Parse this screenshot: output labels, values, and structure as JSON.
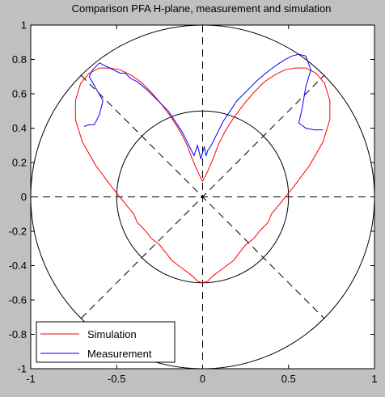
{
  "chart_data": {
    "type": "line",
    "title": "Comparison PFA H-plane, measurement and simulation",
    "xlabel": "",
    "ylabel": "",
    "xlim": [
      -1,
      1
    ],
    "ylim": [
      -1,
      1
    ],
    "xticks": [
      "-1",
      "-0.5",
      "0",
      "0.5",
      "1"
    ],
    "yticks": [
      "1",
      "0.8",
      "0.6",
      "0.4",
      "0.2",
      "0",
      "-0.2",
      "-0.4",
      "-0.6",
      "-0.8",
      "-1"
    ],
    "xtick_values": [
      -1,
      -0.5,
      0,
      0.5,
      1
    ],
    "ytick_values": [
      1,
      0.8,
      0.6,
      0.4,
      0.2,
      0,
      -0.2,
      -0.4,
      -0.6,
      -0.8,
      -1
    ],
    "polar_reference_circles": [
      0.5,
      1.0
    ],
    "legend": {
      "placement": "bottom-left"
    },
    "series": [
      {
        "name": "Simulation",
        "color": "#ff0000",
        "x": [
          0,
          -0.03,
          -0.06,
          -0.09,
          -0.13,
          -0.18,
          -0.24,
          -0.3,
          -0.36,
          -0.42,
          -0.48,
          -0.54,
          -0.6,
          -0.66,
          -0.71,
          -0.74,
          -0.74,
          -0.7,
          -0.62,
          -0.53,
          -0.45,
          -0.4,
          -0.38,
          -0.33,
          -0.3,
          -0.25,
          -0.21,
          -0.18,
          -0.14,
          -0.1,
          -0.06,
          -0.03,
          0,
          0.03,
          0.06,
          0.1,
          0.14,
          0.18,
          0.21,
          0.25,
          0.3,
          0.33,
          0.38,
          0.4,
          0.45,
          0.53,
          0.62,
          0.7,
          0.74,
          0.74,
          0.71,
          0.66,
          0.6,
          0.54,
          0.48,
          0.42,
          0.36,
          0.3,
          0.24,
          0.18,
          0.13,
          0.09,
          0.06,
          0.03,
          0
        ],
        "y": [
          0.09,
          0.15,
          0.22,
          0.3,
          0.38,
          0.46,
          0.54,
          0.61,
          0.67,
          0.71,
          0.74,
          0.75,
          0.75,
          0.72,
          0.66,
          0.56,
          0.45,
          0.32,
          0.18,
          0.06,
          -0.04,
          -0.1,
          -0.15,
          -0.2,
          -0.24,
          -0.28,
          -0.33,
          -0.37,
          -0.4,
          -0.43,
          -0.46,
          -0.49,
          -0.5,
          -0.49,
          -0.46,
          -0.43,
          -0.4,
          -0.37,
          -0.33,
          -0.28,
          -0.24,
          -0.2,
          -0.15,
          -0.1,
          -0.04,
          0.06,
          0.18,
          0.32,
          0.45,
          0.56,
          0.66,
          0.72,
          0.75,
          0.75,
          0.74,
          0.71,
          0.67,
          0.61,
          0.54,
          0.46,
          0.38,
          0.3,
          0.22,
          0.15,
          0.09
        ]
      },
      {
        "name": "Measurement",
        "color": "#0000ff",
        "x": [
          -0.69,
          -0.66,
          -0.63,
          -0.6,
          -0.58,
          -0.62,
          -0.66,
          -0.64,
          -0.6,
          -0.56,
          -0.52,
          -0.48,
          -0.45,
          -0.42,
          -0.38,
          -0.32,
          -0.26,
          -0.2,
          -0.16,
          -0.12,
          -0.09,
          -0.07,
          -0.05,
          -0.03,
          -0.02,
          -0.01,
          0,
          0.01,
          0.02,
          0.03,
          0.05,
          0.07,
          0.09,
          0.12,
          0.16,
          0.2,
          0.26,
          0.32,
          0.38,
          0.42,
          0.45,
          0.48,
          0.52,
          0.56,
          0.6,
          0.63,
          0.6,
          0.58,
          0.56,
          0.6,
          0.65,
          0.7
        ],
        "y": [
          0.41,
          0.42,
          0.42,
          0.48,
          0.56,
          0.63,
          0.7,
          0.74,
          0.78,
          0.76,
          0.74,
          0.72,
          0.72,
          0.69,
          0.67,
          0.62,
          0.56,
          0.5,
          0.44,
          0.38,
          0.32,
          0.28,
          0.24,
          0.3,
          0.26,
          0.22,
          0.26,
          0.29,
          0.24,
          0.27,
          0.3,
          0.34,
          0.38,
          0.44,
          0.5,
          0.56,
          0.62,
          0.68,
          0.73,
          0.76,
          0.78,
          0.8,
          0.82,
          0.83,
          0.82,
          0.74,
          0.64,
          0.52,
          0.43,
          0.4,
          0.39,
          0.39
        ]
      }
    ]
  }
}
